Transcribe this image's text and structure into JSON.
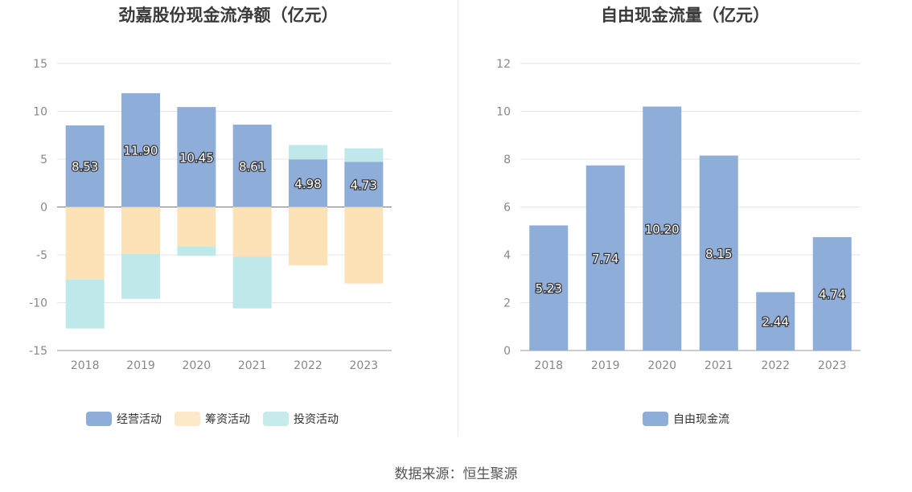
{
  "source_text": "数据来源：恒生聚源",
  "colors": {
    "operating": "#8eadd9",
    "financing": "#fdd99b",
    "investing": "#87d5d8",
    "axis": "#999999",
    "grid": "#e6e6e6"
  },
  "chart_data": [
    {
      "type": "bar",
      "title": "劲嘉股份现金流净额（亿元）",
      "categories": [
        "2018",
        "2019",
        "2020",
        "2021",
        "2022",
        "2023"
      ],
      "stacked": true,
      "ylim": [
        -15,
        15
      ],
      "yticks": [
        15,
        10,
        5,
        0,
        -5,
        -10,
        -15
      ],
      "legend_position": "bottom",
      "series": [
        {
          "name": "经营活动",
          "color": "#8eadd9",
          "values": [
            8.53,
            11.9,
            10.45,
            8.61,
            4.98,
            4.73
          ],
          "labels": [
            "8.53",
            "11.90",
            "10.45",
            "8.61",
            "4.98",
            "4.73"
          ]
        },
        {
          "name": "筹资活动",
          "color": "#fde2b8",
          "values": [
            -7.6,
            -4.9,
            -4.1,
            -5.2,
            -6.1,
            -8.0
          ]
        },
        {
          "name": "投资活动",
          "color": "#bfe8ea",
          "values": [
            -5.1,
            -4.7,
            -1.0,
            -5.4,
            1.5,
            1.4
          ]
        }
      ]
    },
    {
      "type": "bar",
      "title": "自由现金流量（亿元）",
      "categories": [
        "2018",
        "2019",
        "2020",
        "2021",
        "2022",
        "2023"
      ],
      "ylim": [
        0,
        12
      ],
      "yticks": [
        12,
        10,
        8,
        6,
        4,
        2,
        0
      ],
      "legend_position": "bottom",
      "series": [
        {
          "name": "自由现金流",
          "color": "#8eadd9",
          "values": [
            5.23,
            7.74,
            10.2,
            8.15,
            2.44,
            4.74
          ],
          "labels": [
            "5.23",
            "7.74",
            "10.20",
            "8.15",
            "2.44",
            "4.74"
          ]
        }
      ]
    }
  ]
}
